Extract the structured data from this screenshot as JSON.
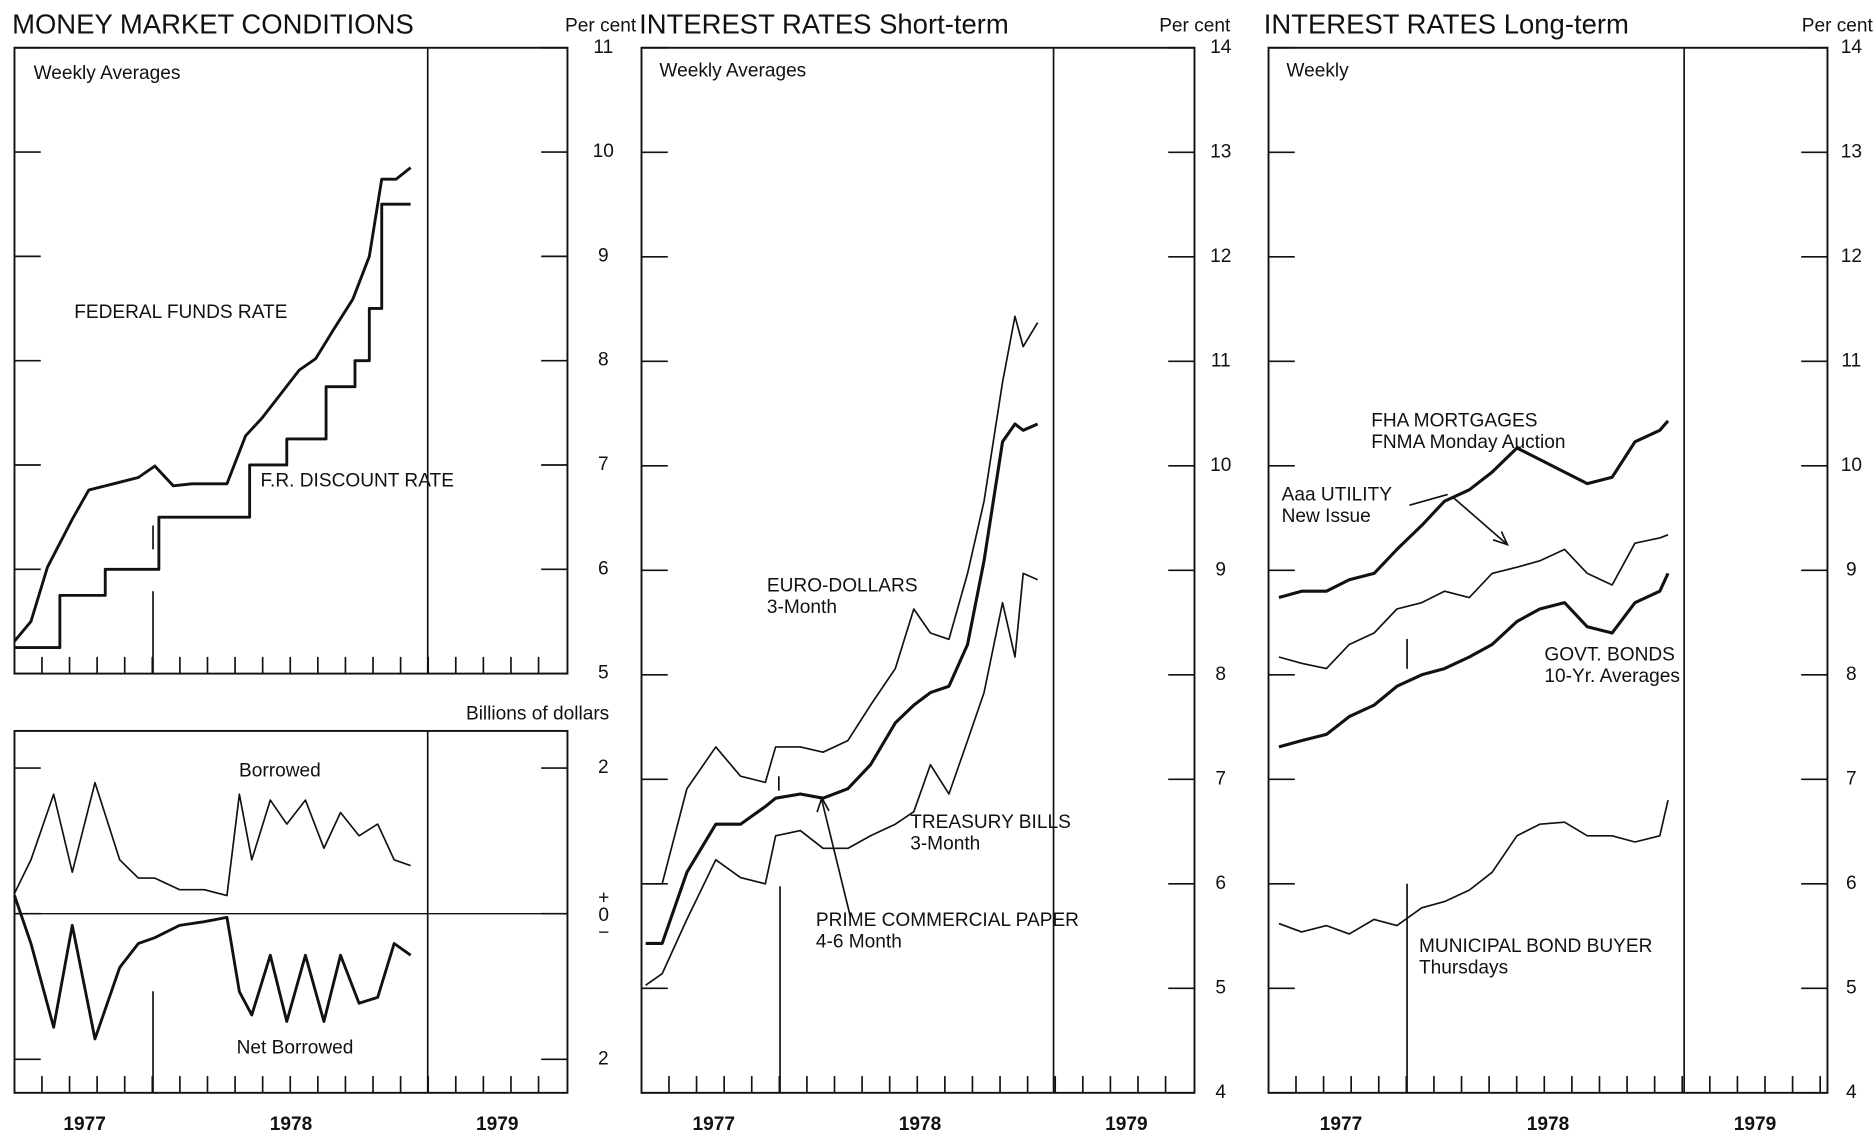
{
  "chart_data": [
    {
      "type": "line",
      "title": "MONEY MARKET CONDITIONS",
      "subtitle": "Weekly Averages",
      "y_axis_label": "Per cent",
      "xlim": [
        1977.16,
        1979.84
      ],
      "ylim": [
        5,
        11
      ],
      "yticks": [
        5,
        6,
        7,
        8,
        9,
        10,
        11
      ],
      "series": [
        {
          "name": "FEDERAL FUNDS RATE",
          "color": "#111",
          "line_width": 2.4,
          "x": [
            1977.16,
            1977.24,
            1977.32,
            1977.44,
            1977.52,
            1977.64,
            1977.76,
            1977.84,
            1977.93,
            1978.02,
            1978.19,
            1978.28,
            1978.36,
            1978.45,
            1978.54,
            1978.62,
            1978.71,
            1978.8,
            1978.88,
            1978.94,
            1979.01,
            1979.08
          ],
          "values": [
            5.31,
            5.5,
            6.02,
            6.48,
            6.76,
            6.82,
            6.88,
            6.99,
            6.8,
            6.82,
            6.82,
            7.28,
            7.45,
            7.68,
            7.91,
            8.02,
            8.31,
            8.59,
            9.0,
            9.74,
            9.74,
            9.85
          ]
        },
        {
          "name": "F.R. DISCOUNT RATE",
          "color": "#111",
          "line_width": 2.4,
          "x": [
            1977.16,
            1977.38,
            1977.38,
            1977.6,
            1977.6,
            1977.86,
            1977.86,
            1978.3,
            1978.3,
            1978.48,
            1978.48,
            1978.67,
            1978.67,
            1978.81,
            1978.81,
            1978.88,
            1978.88,
            1978.94,
            1978.94,
            1979.08
          ],
          "values": [
            5.25,
            5.25,
            5.75,
            5.75,
            6,
            6,
            6.5,
            6.5,
            7,
            7,
            7.25,
            7.25,
            7.75,
            7.75,
            8,
            8,
            8.5,
            8.5,
            9.5,
            9.5
          ]
        }
      ]
    },
    {
      "type": "line",
      "y_axis_label": "Billions of dollars",
      "xlim": [
        1977.16,
        1979.84
      ],
      "ylim": [
        -2.46,
        2.51
      ],
      "yticks": [
        {
          "value": -2,
          "label": "2"
        },
        {
          "value": 0,
          "label": "+0−"
        },
        2
      ],
      "zero_line": true,
      "xticks": [
        {
          "value": 1977.5,
          "label": "1977"
        },
        {
          "value": 1978.5,
          "label": "1978"
        },
        {
          "value": 1979.5,
          "label": "1979"
        }
      ],
      "series": [
        {
          "name": "Borrowed",
          "color": "#111",
          "line_width": 1.4,
          "x": [
            1977.16,
            1977.24,
            1977.35,
            1977.44,
            1977.55,
            1977.67,
            1977.76,
            1977.84,
            1977.96,
            1978.08,
            1978.19,
            1978.25,
            1978.31,
            1978.4,
            1978.48,
            1978.57,
            1978.66,
            1978.74,
            1978.83,
            1978.92,
            1979.0,
            1979.08
          ],
          "values": [
            0.28,
            0.74,
            1.64,
            0.57,
            1.8,
            0.74,
            0.49,
            0.49,
            0.33,
            0.33,
            0.25,
            1.64,
            0.74,
            1.56,
            1.23,
            1.56,
            0.9,
            1.39,
            1.07,
            1.23,
            0.74,
            0.66
          ]
        },
        {
          "name": "Net Borrowed",
          "color": "#111",
          "line_width": 2.4,
          "x": [
            1977.16,
            1977.24,
            1977.35,
            1977.44,
            1977.55,
            1977.67,
            1977.76,
            1977.84,
            1977.96,
            1978.08,
            1978.19,
            1978.25,
            1978.31,
            1978.4,
            1978.48,
            1978.57,
            1978.66,
            1978.74,
            1978.83,
            1978.92,
            1979.0,
            1979.08
          ],
          "values": [
            0.25,
            -0.41,
            -1.56,
            -0.16,
            -1.72,
            -0.74,
            -0.41,
            -0.33,
            -0.16,
            -0.11,
            -0.05,
            -1.07,
            -1.39,
            -0.57,
            -1.48,
            -0.57,
            -1.48,
            -0.57,
            -1.23,
            -1.15,
            -0.41,
            -0.57
          ]
        }
      ]
    },
    {
      "type": "line",
      "title": "INTEREST RATES Short-term",
      "subtitle": "Weekly Averages",
      "y_axis_label": "Per cent",
      "xlim": [
        1977.15,
        1979.83
      ],
      "ylim": [
        4,
        14
      ],
      "yticks": [
        4,
        5,
        6,
        7,
        8,
        9,
        10,
        11,
        12,
        13,
        14
      ],
      "xticks": [
        {
          "value": 1977.5,
          "label": "1977"
        },
        {
          "value": 1978.5,
          "label": "1978"
        },
        {
          "value": 1979.5,
          "label": "1979"
        }
      ],
      "series": [
        {
          "name": "EURO-DOLLARS",
          "subname": "3-Month",
          "color": "#111",
          "line_width": 1.4,
          "x": [
            1977.17,
            1977.25,
            1977.37,
            1977.51,
            1977.63,
            1977.75,
            1977.8,
            1977.92,
            1978.03,
            1978.15,
            1978.26,
            1978.38,
            1978.47,
            1978.55,
            1978.64,
            1978.73,
            1978.81,
            1978.9,
            1978.96,
            1979.0,
            1979.07
          ],
          "values": [
            6.0,
            6.0,
            6.91,
            7.31,
            7.03,
            6.97,
            7.31,
            7.31,
            7.26,
            7.37,
            7.71,
            8.06,
            8.63,
            8.4,
            8.34,
            8.97,
            9.66,
            10.8,
            11.43,
            11.14,
            11.37
          ]
        },
        {
          "name": "TREASURY BILLS",
          "subname": "3-Month",
          "color": "#111",
          "line_width": 1.4,
          "x": [
            1977.17,
            1977.25,
            1977.37,
            1977.51,
            1977.63,
            1977.75,
            1977.8,
            1977.92,
            1978.03,
            1978.15,
            1978.26,
            1978.38,
            1978.47,
            1978.55,
            1978.64,
            1978.73,
            1978.81,
            1978.9,
            1978.96,
            1979.0,
            1979.07
          ],
          "values": [
            5.03,
            5.14,
            5.66,
            6.23,
            6.06,
            6.0,
            6.46,
            6.51,
            6.34,
            6.34,
            6.46,
            6.57,
            6.69,
            7.14,
            6.86,
            7.37,
            7.83,
            8.69,
            8.17,
            8.97,
            8.91
          ]
        },
        {
          "name": "PRIME COMMERCIAL PAPER",
          "subname": "4-6 Month",
          "color": "#111",
          "line_width": 2.6,
          "x": [
            1977.17,
            1977.25,
            1977.37,
            1977.51,
            1977.63,
            1977.75,
            1977.8,
            1977.92,
            1978.03,
            1978.15,
            1978.26,
            1978.38,
            1978.47,
            1978.55,
            1978.64,
            1978.73,
            1978.81,
            1978.9,
            1978.96,
            1979.0,
            1979.07
          ],
          "values": [
            5.43,
            5.43,
            6.11,
            6.57,
            6.57,
            6.74,
            6.82,
            6.86,
            6.82,
            6.91,
            7.14,
            7.54,
            7.71,
            7.83,
            7.89,
            8.29,
            9.09,
            10.23,
            10.4,
            10.34,
            10.4
          ]
        }
      ]
    },
    {
      "type": "line",
      "title": "INTEREST RATES Long-term",
      "subtitle": "Weekly",
      "y_axis_label": "Per cent",
      "xlim": [
        1977.15,
        1979.85
      ],
      "ylim": [
        4,
        14
      ],
      "yticks": [
        4,
        5,
        6,
        7,
        8,
        9,
        10,
        11,
        12,
        13,
        14
      ],
      "xticks": [
        {
          "value": 1977.5,
          "label": "1977"
        },
        {
          "value": 1978.5,
          "label": "1978"
        },
        {
          "value": 1979.5,
          "label": "1979"
        }
      ],
      "series": [
        {
          "name": "FHA MORTGAGES",
          "subname": "FNMA Monday Auction",
          "color": "#111",
          "line_width": 2.6,
          "x": [
            1977.2,
            1977.31,
            1977.43,
            1977.54,
            1977.66,
            1977.77,
            1977.89,
            1978.0,
            1978.12,
            1978.23,
            1978.35,
            1978.46,
            1978.58,
            1978.69,
            1978.81,
            1978.92,
            1979.04,
            1979.08
          ],
          "values": [
            8.74,
            8.8,
            8.8,
            8.91,
            8.97,
            9.2,
            9.43,
            9.66,
            9.77,
            9.94,
            10.17,
            10.06,
            9.94,
            9.83,
            9.89,
            10.23,
            10.34,
            10.43
          ]
        },
        {
          "name": "Aaa UTILITY",
          "subname": "New Issue",
          "color": "#111",
          "line_width": 1.4,
          "x": [
            1977.2,
            1977.31,
            1977.43,
            1977.54,
            1977.66,
            1977.77,
            1977.89,
            1978.0,
            1978.12,
            1978.23,
            1978.35,
            1978.46,
            1978.58,
            1978.69,
            1978.81,
            1978.92,
            1979.04,
            1979.08
          ],
          "values": [
            8.17,
            8.11,
            8.06,
            8.29,
            8.4,
            8.63,
            8.69,
            8.8,
            8.74,
            8.97,
            9.03,
            9.09,
            9.2,
            8.97,
            8.86,
            9.26,
            9.31,
            9.34
          ]
        },
        {
          "name": "GOVT. BONDS",
          "subname": "10-Yr. Averages",
          "color": "#111",
          "line_width": 2.6,
          "x": [
            1977.2,
            1977.31,
            1977.43,
            1977.54,
            1977.66,
            1977.77,
            1977.89,
            1978.0,
            1978.12,
            1978.23,
            1978.35,
            1978.46,
            1978.58,
            1978.69,
            1978.81,
            1978.92,
            1979.04,
            1979.08
          ],
          "values": [
            7.31,
            7.37,
            7.43,
            7.6,
            7.71,
            7.89,
            8.0,
            8.06,
            8.17,
            8.29,
            8.51,
            8.63,
            8.69,
            8.46,
            8.4,
            8.69,
            8.8,
            8.97
          ]
        },
        {
          "name": "MUNICIPAL BOND BUYER",
          "subname": "Thursdays",
          "color": "#111",
          "line_width": 1.4,
          "x": [
            1977.2,
            1977.31,
            1977.43,
            1977.54,
            1977.66,
            1977.77,
            1977.89,
            1978.0,
            1978.12,
            1978.23,
            1978.35,
            1978.46,
            1978.58,
            1978.69,
            1978.81,
            1978.92,
            1979.04,
            1979.08
          ],
          "values": [
            5.62,
            5.54,
            5.6,
            5.52,
            5.66,
            5.6,
            5.77,
            5.83,
            5.94,
            6.11,
            6.46,
            6.57,
            6.59,
            6.46,
            6.46,
            6.4,
            6.46,
            6.8
          ]
        }
      ]
    }
  ]
}
